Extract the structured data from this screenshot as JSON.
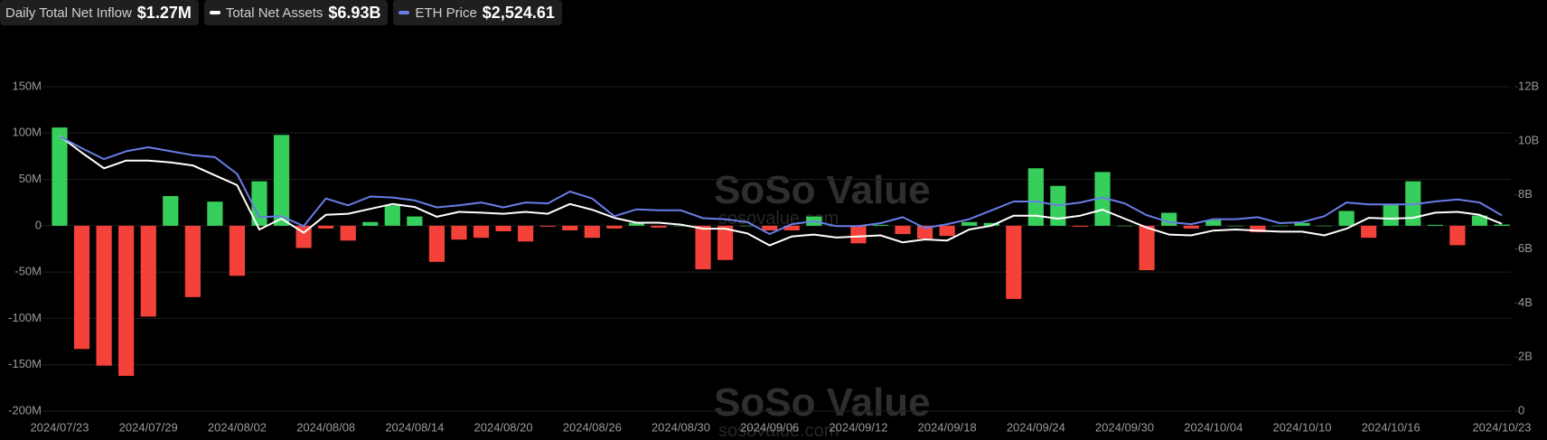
{
  "chart_data": {
    "type": "bar",
    "watermark": "SoSo Value",
    "watermark_url": "sosovalue.com",
    "categories": [
      "2024/07/23",
      null,
      null,
      null,
      "2024/07/29",
      null,
      null,
      null,
      "2024/08/02",
      null,
      null,
      null,
      "2024/08/08",
      null,
      null,
      null,
      "2024/08/14",
      null,
      null,
      null,
      "2024/08/20",
      null,
      null,
      null,
      "2024/08/26",
      null,
      null,
      null,
      "2024/08/30",
      null,
      null,
      null,
      "2024/09/06",
      null,
      null,
      null,
      "2024/09/12",
      null,
      null,
      null,
      "2024/09/18",
      null,
      null,
      null,
      "2024/09/24",
      null,
      null,
      null,
      "2024/09/30",
      null,
      null,
      null,
      "2024/10/04",
      null,
      null,
      null,
      "2024/10/10",
      null,
      null,
      null,
      "2024/10/16",
      null,
      null,
      null,
      null,
      "2024/10/23"
    ],
    "series": [
      {
        "name": "Daily Total Net Inflow",
        "current": "$1.27M",
        "type": "bar",
        "color": "#37cf5b",
        "negative_color": "#f4413a",
        "values": [
          106,
          -133,
          -151,
          -162,
          -98,
          32,
          -77,
          26,
          -54,
          48,
          98,
          -24,
          -3,
          -16,
          4,
          22,
          10,
          -39,
          -15,
          -13,
          -6,
          -17,
          -1,
          -5,
          -13,
          -3,
          3,
          -2,
          0,
          -47,
          -37,
          0,
          -5,
          -5,
          10,
          0,
          -19,
          1,
          -9,
          -14,
          -11,
          4,
          3,
          -79,
          62,
          43,
          -1,
          58,
          0,
          -48,
          14,
          -3,
          6,
          0,
          -7,
          0,
          3,
          0,
          16,
          -13,
          23,
          48,
          1,
          -21,
          11,
          1.27
        ]
      },
      {
        "name": "Total Net Assets",
        "current": "$6.93B",
        "type": "line",
        "axis": "y2",
        "color": "#ffffff",
        "values": [
          10.18,
          9.56,
          8.98,
          9.27,
          9.27,
          9.2,
          9.09,
          8.72,
          8.36,
          6.72,
          7.12,
          6.6,
          7.26,
          7.3,
          7.48,
          7.66,
          7.55,
          7.19,
          7.37,
          7.34,
          7.3,
          7.37,
          7.3,
          7.66,
          7.45,
          7.15,
          6.97,
          6.97,
          6.9,
          6.75,
          6.75,
          6.57,
          6.13,
          6.46,
          6.53,
          6.42,
          6.46,
          6.5,
          6.24,
          6.35,
          6.31,
          6.72,
          6.86,
          7.23,
          7.23,
          7.12,
          7.23,
          7.45,
          7.12,
          6.79,
          6.53,
          6.5,
          6.68,
          6.72,
          6.68,
          6.64,
          6.64,
          6.5,
          6.75,
          7.15,
          7.12,
          7.15,
          7.34,
          7.37,
          7.26,
          6.93
        ]
      },
      {
        "name": "ETH Price",
        "current": "$2,524.61",
        "type": "line",
        "axis": "hidden",
        "color": "#6a7de6",
        "values": [
          3480,
          3337,
          3206,
          3301,
          3349,
          3301,
          3254,
          3230,
          3027,
          2503,
          2515,
          2395,
          2729,
          2646,
          2753,
          2741,
          2706,
          2622,
          2646,
          2681,
          2622,
          2681,
          2670,
          2813,
          2729,
          2515,
          2598,
          2586,
          2586,
          2491,
          2479,
          2443,
          2300,
          2419,
          2455,
          2395,
          2395,
          2431,
          2503,
          2372,
          2419,
          2479,
          2586,
          2693,
          2693,
          2646,
          2681,
          2741,
          2670,
          2527,
          2443,
          2419,
          2479,
          2479,
          2503,
          2431,
          2443,
          2515,
          2681,
          2658,
          2658,
          2658,
          2693,
          2717,
          2681,
          2524.61
        ]
      }
    ],
    "ylim": [
      -200,
      150
    ],
    "yticks": [
      {
        "value": -200,
        "label": "-200M"
      },
      {
        "value": -150,
        "label": "-150M"
      },
      {
        "value": -100,
        "label": "-100M"
      },
      {
        "value": -50,
        "label": "-50M"
      },
      0,
      {
        "value": 50,
        "label": "50M"
      },
      {
        "value": 100,
        "label": "100M"
      },
      {
        "value": 150,
        "label": "150M"
      }
    ],
    "y2lim": [
      0,
      12
    ],
    "y2ticks": [
      0,
      {
        "value": 2,
        "label": "2B"
      },
      {
        "value": 4,
        "label": "4B"
      },
      {
        "value": 6,
        "label": "6B"
      },
      {
        "value": 8,
        "label": "8B"
      },
      {
        "value": 10,
        "label": "10B"
      },
      {
        "value": 12,
        "label": "12B"
      }
    ],
    "grid": true
  }
}
